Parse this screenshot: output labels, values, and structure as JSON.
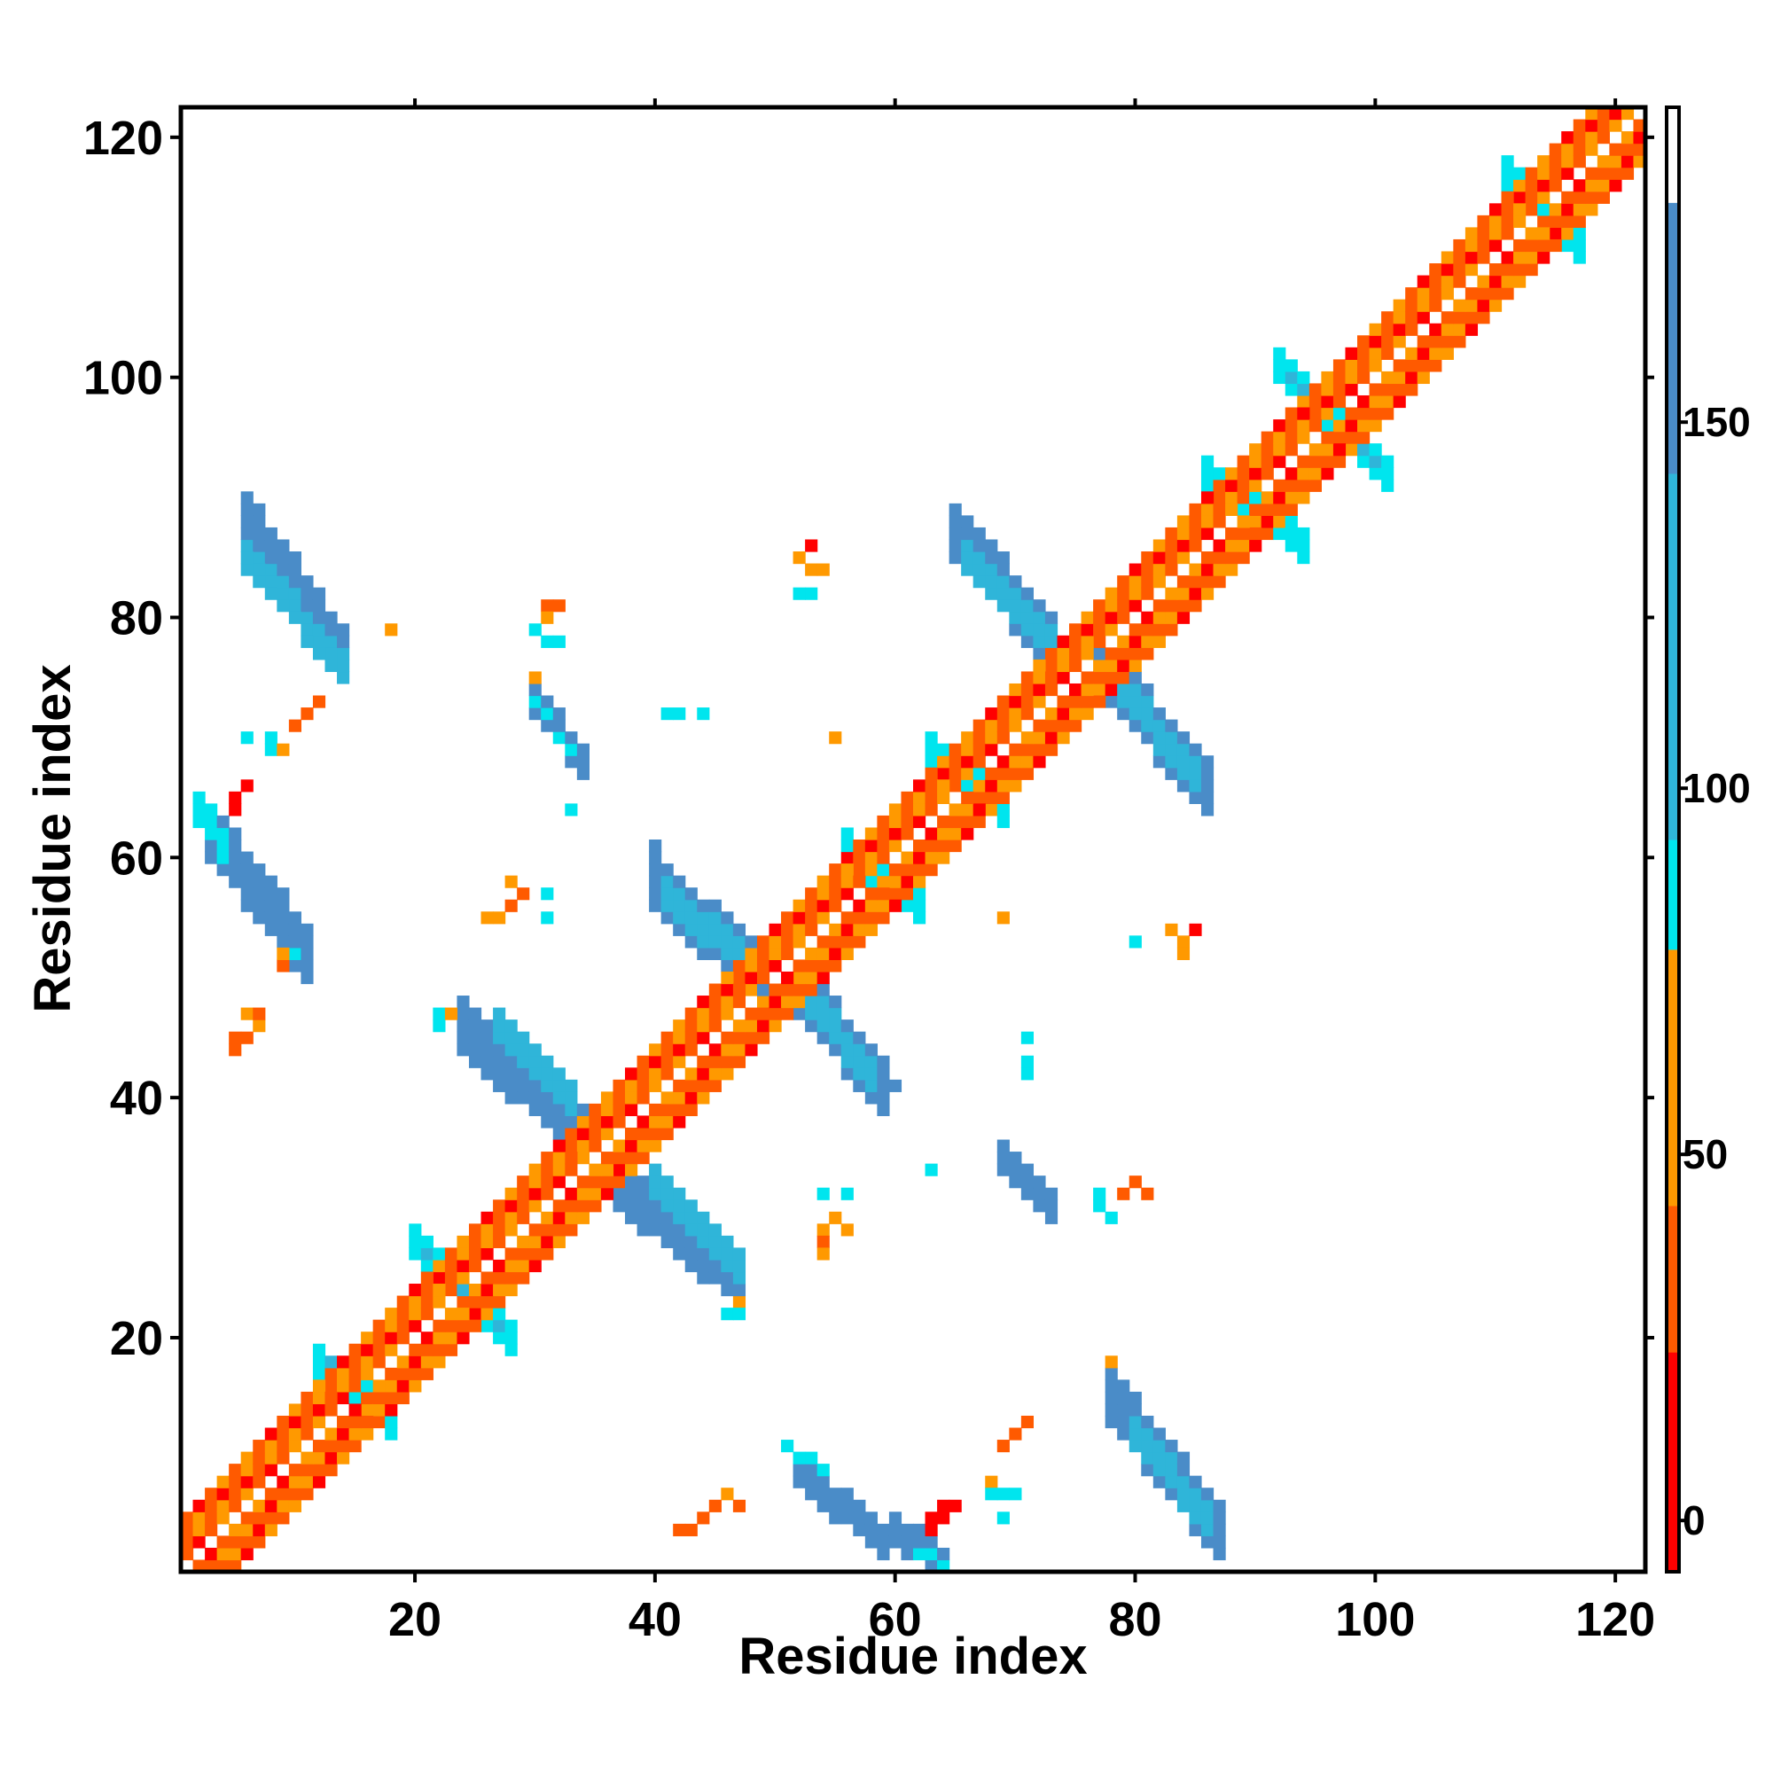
{
  "chart_data": {
    "type": "heatmap",
    "title": "",
    "xlabel": "Residue index",
    "ylabel": "Residue index",
    "xlim": [
      0.5,
      122.5
    ],
    "ylim": [
      0.5,
      122.5
    ],
    "xticks": [
      20,
      40,
      60,
      80,
      100,
      120
    ],
    "yticks": [
      20,
      40,
      60,
      80,
      100,
      120
    ],
    "grid": false,
    "legend": "colorbar right",
    "colorbar": {
      "ticks": [
        0,
        50,
        100,
        150
      ],
      "range": [
        -7,
        193
      ],
      "bands": [
        {
          "from": -7,
          "to": 23,
          "color": "#ff0000"
        },
        {
          "from": 23,
          "to": 43,
          "color": "#ff5a00"
        },
        {
          "from": 43,
          "to": 78,
          "color": "#ff9900"
        },
        {
          "from": 78,
          "to": 93,
          "color": "#00e5ee"
        },
        {
          "from": 93,
          "to": 143,
          "color": "#2fb5d9"
        },
        {
          "from": 143,
          "to": 180,
          "color": "#4a8cc8"
        },
        {
          "from": 180,
          "to": 193,
          "color": "#ffffff"
        }
      ]
    },
    "palette": {
      "r": "#ff0000",
      "o": "#ff5a00",
      "y": "#ff9900",
      "c": "#00e5ee",
      "m": "#2fb5d9",
      "b": "#4a8cc8"
    },
    "diagonal_band": {
      "start": 1,
      "end": 122,
      "offsets": [
        1,
        2,
        3,
        4
      ],
      "pattern": [
        "y",
        "o",
        "r",
        "o",
        "y",
        "o"
      ]
    },
    "blobs": [
      {
        "x": [
          6,
          14
        ],
        "y": [
          88,
          77
        ],
        "w": 2,
        "c": "b"
      },
      {
        "x": [
          6,
          14
        ],
        "y": [
          85,
          76
        ],
        "w": 1,
        "c": "m"
      },
      {
        "x": [
          3,
          11
        ],
        "y": [
          62,
          52
        ],
        "w": 2,
        "c": "b"
      },
      {
        "x": [
          2,
          4
        ],
        "y": [
          64,
          61
        ],
        "w": 1,
        "c": "c"
      },
      {
        "x": [
          24,
          34
        ],
        "y": [
          46,
          37
        ],
        "w": 2,
        "c": "b"
      },
      {
        "x": [
          27,
          33
        ],
        "y": [
          46,
          40
        ],
        "w": 1,
        "c": "m"
      },
      {
        "x": [
          37,
          47
        ],
        "y": [
          33,
          25
        ],
        "w": 2,
        "c": "b"
      },
      {
        "x": [
          40,
          47
        ],
        "y": [
          33,
          26
        ],
        "w": 1,
        "c": "m"
      },
      {
        "x": [
          40,
          49
        ],
        "y": [
          58,
          50
        ],
        "w": 2,
        "c": "b"
      },
      {
        "x": [
          41,
          48
        ],
        "y": [
          57,
          51
        ],
        "w": 1,
        "c": "m"
      },
      {
        "x": [
          52,
          59
        ],
        "y": [
          49,
          41
        ],
        "w": 2,
        "c": "b"
      },
      {
        "x": [
          53,
          58
        ],
        "y": [
          48,
          42
        ],
        "w": 1,
        "c": "m"
      },
      {
        "x": [
          30,
          34
        ],
        "y": [
          73,
          68
        ],
        "w": 1,
        "c": "b"
      },
      {
        "x": [
          30,
          33
        ],
        "y": [
          73,
          69
        ],
        "w": 0,
        "c": "c"
      },
      {
        "x": [
          52,
          59
        ],
        "y": [
          9,
          3
        ],
        "w": 1,
        "c": "b"
      },
      {
        "x": [
          51,
          54
        ],
        "y": [
          11,
          9
        ],
        "w": 0,
        "c": "c"
      },
      {
        "x": [
          60,
          64
        ],
        "y": [
          4,
          1
        ],
        "w": 1,
        "c": "b"
      },
      {
        "x": [
          62,
          64
        ],
        "y": [
          2,
          1
        ],
        "w": 0,
        "c": "c"
      },
      {
        "x": [
          69,
          73
        ],
        "y": [
          35,
          31
        ],
        "w": 1,
        "c": "b"
      },
      {
        "x": [
          65,
          73
        ],
        "y": [
          87,
          78
        ],
        "w": 2,
        "c": "b"
      },
      {
        "x": [
          66,
          73
        ],
        "y": [
          85,
          78
        ],
        "w": 1,
        "c": "m"
      },
      {
        "x": [
          77,
          86
        ],
        "y": [
          76,
          66
        ],
        "w": 2,
        "c": "b"
      },
      {
        "x": [
          78,
          85
        ],
        "y": [
          75,
          67
        ],
        "w": 1,
        "c": "m"
      },
      {
        "x": [
          78,
          87
        ],
        "y": [
          15,
          4
        ],
        "w": 2,
        "c": "b"
      },
      {
        "x": [
          80,
          86
        ],
        "y": [
          12,
          5
        ],
        "w": 1,
        "c": "m"
      },
      {
        "x": [
          12,
          18
        ],
        "y": [
          18,
          13
        ],
        "w": 1,
        "c": "c"
      },
      {
        "x": [
          13,
          17
        ],
        "y": [
          18,
          14
        ],
        "w": 0,
        "c": "m"
      },
      {
        "x": [
          20,
          28
        ],
        "y": [
          28,
          20
        ],
        "w": 1,
        "c": "c"
      },
      {
        "x": [
          21,
          27
        ],
        "y": [
          27,
          21
        ],
        "w": 0,
        "c": "m"
      },
      {
        "x": [
          56,
          62
        ],
        "y": [
          61,
          56
        ],
        "w": 1,
        "c": "c"
      },
      {
        "x": [
          63,
          69
        ],
        "y": [
          69,
          64
        ],
        "w": 1,
        "c": "c"
      },
      {
        "x": [
          86,
          94
        ],
        "y": [
          92,
          86
        ],
        "w": 1,
        "c": "c"
      },
      {
        "x": [
          92,
          101
        ],
        "y": [
          101,
          92
        ],
        "w": 1,
        "c": "c"
      },
      {
        "x": [
          93,
          100
        ],
        "y": [
          100,
          93
        ],
        "w": 0,
        "c": "m"
      },
      {
        "x": [
          111,
          117
        ],
        "y": [
          117,
          111
        ],
        "w": 1,
        "c": "c"
      }
    ],
    "cells": [
      [
        "r",
        5,
        65
      ],
      [
        "r",
        6,
        66
      ],
      [
        "r",
        5,
        64
      ],
      [
        "o",
        10,
        71
      ],
      [
        "o",
        11,
        72
      ],
      [
        "o",
        12,
        73
      ],
      [
        "c",
        6,
        70
      ],
      [
        "c",
        8,
        70
      ],
      [
        "c",
        8,
        69
      ],
      [
        "y",
        9,
        69
      ],
      [
        "o",
        5,
        45
      ],
      [
        "o",
        6,
        45
      ],
      [
        "o",
        5,
        44
      ],
      [
        "y",
        6,
        47
      ],
      [
        "y",
        7,
        46
      ],
      [
        "o",
        7,
        47
      ],
      [
        "o",
        9,
        51
      ],
      [
        "y",
        9,
        52
      ],
      [
        "c",
        10,
        52
      ],
      [
        "c",
        22,
        47
      ],
      [
        "c",
        22,
        46
      ],
      [
        "y",
        23,
        47
      ],
      [
        "y",
        26,
        55
      ],
      [
        "y",
        27,
        55
      ],
      [
        "o",
        28,
        56
      ],
      [
        "y",
        28,
        58
      ],
      [
        "o",
        29,
        57
      ],
      [
        "c",
        31,
        57
      ],
      [
        "c",
        31,
        55
      ],
      [
        "o",
        31,
        81
      ],
      [
        "o",
        32,
        81
      ],
      [
        "y",
        31,
        80
      ],
      [
        "c",
        30,
        79
      ],
      [
        "c",
        31,
        78
      ],
      [
        "c",
        32,
        78
      ],
      [
        "y",
        18,
        79
      ],
      [
        "y",
        30,
        75
      ],
      [
        "c",
        41,
        72
      ],
      [
        "c",
        42,
        72
      ],
      [
        "c",
        44,
        72
      ],
      [
        "c",
        33,
        64
      ],
      [
        "b",
        40,
        61
      ],
      [
        "r",
        53,
        86
      ],
      [
        "y",
        52,
        85
      ],
      [
        "y",
        53,
        84
      ],
      [
        "y",
        54,
        84
      ],
      [
        "c",
        52,
        82
      ],
      [
        "c",
        53,
        82
      ],
      [
        "y",
        55,
        70
      ],
      [
        "y",
        69,
        55
      ],
      [
        "c",
        80,
        53
      ],
      [
        "y",
        83,
        54
      ],
      [
        "y",
        84,
        53
      ],
      [
        "y",
        84,
        52
      ],
      [
        "r",
        85,
        54
      ],
      [
        "c",
        71,
        45
      ],
      [
        "c",
        71,
        43
      ],
      [
        "c",
        71,
        42
      ],
      [
        "b",
        60,
        41
      ],
      [
        "c",
        63,
        34
      ],
      [
        "c",
        77,
        32
      ],
      [
        "c",
        77,
        31
      ],
      [
        "c",
        78,
        30
      ],
      [
        "o",
        79,
        32
      ],
      [
        "o",
        80,
        33
      ],
      [
        "o",
        81,
        32
      ],
      [
        "c",
        54,
        32
      ],
      [
        "c",
        56,
        32
      ],
      [
        "y",
        54,
        29
      ],
      [
        "y",
        55,
        30
      ],
      [
        "o",
        54,
        28
      ],
      [
        "y",
        54,
        27
      ],
      [
        "y",
        56,
        29
      ],
      [
        "c",
        46,
        22
      ],
      [
        "c",
        47,
        22
      ],
      [
        "y",
        47,
        23
      ],
      [
        "y",
        78,
        18
      ],
      [
        "o",
        71,
        13
      ],
      [
        "o",
        70,
        12
      ],
      [
        "o",
        69,
        11
      ],
      [
        "y",
        68,
        8
      ],
      [
        "c",
        68,
        7
      ],
      [
        "c",
        69,
        7
      ],
      [
        "c",
        70,
        7
      ],
      [
        "c",
        69,
        5
      ],
      [
        "r",
        63,
        5
      ],
      [
        "r",
        64,
        6
      ],
      [
        "r",
        65,
        6
      ],
      [
        "r",
        63,
        4
      ],
      [
        "r",
        64,
        5
      ],
      [
        "o",
        42,
        4
      ],
      [
        "o",
        43,
        4
      ],
      [
        "o",
        44,
        5
      ],
      [
        "o",
        45,
        6
      ],
      [
        "y",
        46,
        7
      ],
      [
        "o",
        47,
        6
      ],
      [
        "r",
        120,
        122
      ],
      [
        "y",
        121,
        122
      ],
      [
        "r",
        122,
        120
      ]
    ]
  }
}
